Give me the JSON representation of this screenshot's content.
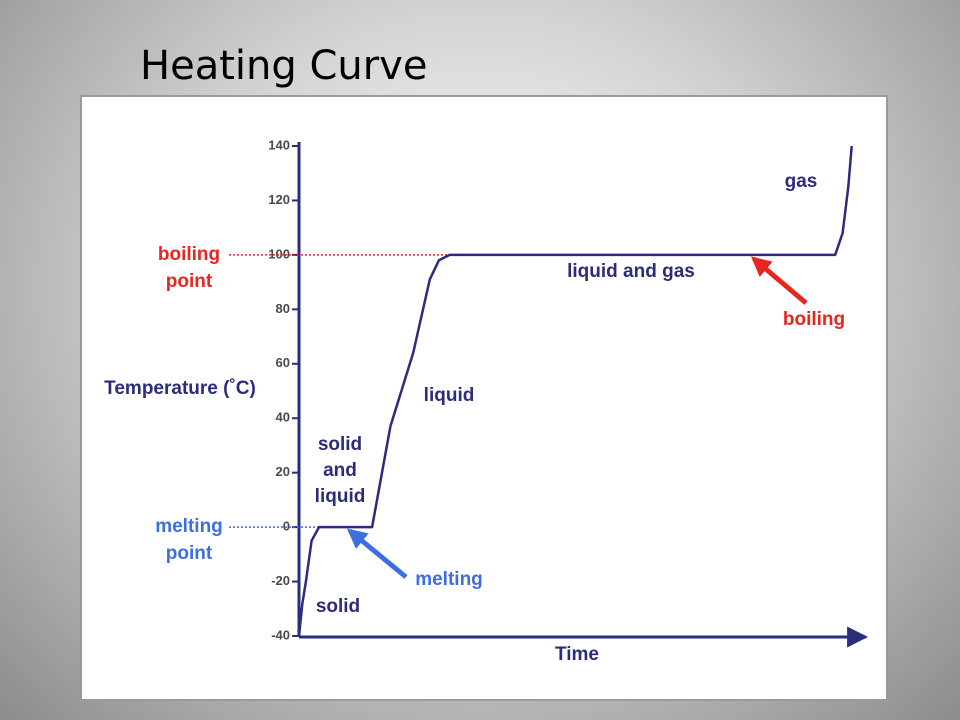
{
  "chart_data": {
    "type": "line",
    "title": "Heating Curve",
    "y_label": "Temperature (˚C)",
    "x_label": "Time",
    "x": [
      0,
      0.6,
      1.2,
      2.2,
      3.5,
      12.8,
      16,
      20,
      22.9,
      24.5,
      26.4,
      93.9,
      95.2,
      96.2,
      96.8
    ],
    "xlim": [
      0,
      100
    ],
    "series": [
      {
        "color": "#2b2c7c",
        "values": [
          -40,
          -28,
          -20,
          -5,
          0,
          0,
          37,
          64,
          91,
          98,
          100,
          100,
          108,
          125,
          140
        ]
      }
    ],
    "ylim": [
      -40,
      140
    ],
    "yticks": [
      -40,
      -20,
      0,
      20,
      40,
      60,
      80,
      100,
      120,
      140
    ],
    "reference_lines": [
      {
        "label": [
          "boiling",
          "point"
        ],
        "value": 100,
        "color": "#e8261f"
      },
      {
        "label": [
          "melting",
          "point"
        ],
        "value": 0,
        "color": "#3d6fe0"
      }
    ],
    "region_labels": [
      [
        "solid"
      ],
      [
        "solid",
        "and",
        "liquid"
      ],
      [
        "liquid"
      ],
      [
        "liquid and gas"
      ],
      [
        "gas"
      ]
    ],
    "arrows": [
      {
        "text": "melting",
        "color": "#3d6fe0"
      },
      {
        "text": "boiling",
        "color": "#e8261f"
      }
    ]
  }
}
